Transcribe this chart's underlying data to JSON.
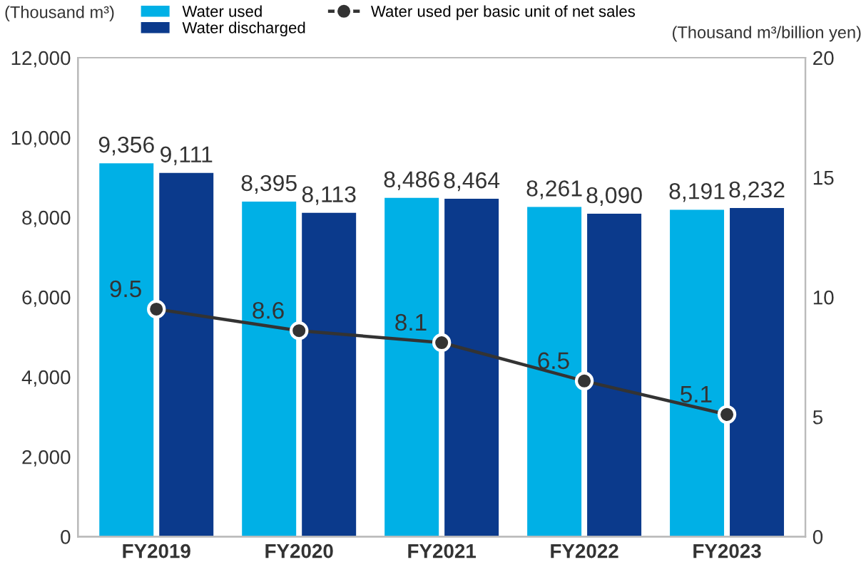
{
  "chart_data": {
    "type": "bar",
    "categories": [
      "FY2019",
      "FY2020",
      "FY2021",
      "FY2022",
      "FY2023"
    ],
    "ylabel": "(Thousand m³)",
    "y2label": "(Thousand m³/billion yen)",
    "ylim": [
      0,
      12000
    ],
    "yticks": [
      0,
      {
        "value": 2000,
        "label": "2,000"
      },
      {
        "value": 4000,
        "label": "4,000"
      },
      {
        "value": 6000,
        "label": "6,000"
      },
      {
        "value": 8000,
        "label": "8,000"
      },
      {
        "value": 10000,
        "label": "10,000"
      },
      {
        "value": 12000,
        "label": "12,000"
      }
    ],
    "y2lim": [
      0,
      20
    ],
    "y2ticks": [
      0,
      5,
      10,
      15,
      20
    ],
    "grid": false,
    "legend": "top",
    "series": [
      {
        "name": "Water used",
        "color": "#00b0e6",
        "values": [
          9356,
          8395,
          8486,
          8261,
          8191
        ],
        "value_labels": [
          "9,356",
          "8,395",
          "8,486",
          "8,261",
          "8,191"
        ]
      },
      {
        "name": "Water discharged",
        "color": "#0b3a8c",
        "values": [
          9111,
          8113,
          8464,
          8090,
          8232
        ],
        "value_labels": [
          "9,111",
          "8,113",
          "8,464",
          "8,090",
          "8,232"
        ]
      },
      {
        "name": "Water used per basic unit of net sales",
        "type": "line",
        "axis": "y2",
        "color": "#333333",
        "marker": "circle",
        "values": [
          9.5,
          8.6,
          8.1,
          6.5,
          5.1
        ],
        "value_labels": [
          "9.5",
          "8.6",
          "8.1",
          "6.5",
          "5.1"
        ]
      }
    ]
  }
}
